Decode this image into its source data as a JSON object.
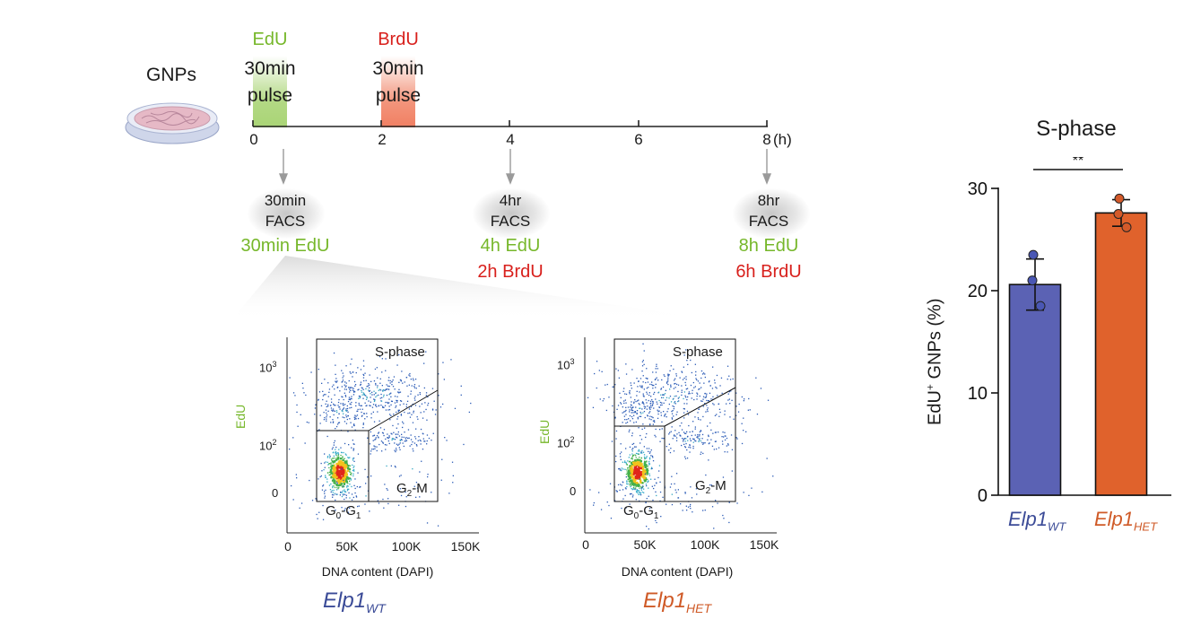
{
  "timeline": {
    "culture_label": "GNPs",
    "edu": {
      "reagent": "EdU",
      "line1": "30min",
      "line2": "pulse"
    },
    "brdu": {
      "reagent": "BrdU",
      "line1": "30min",
      "line2": "pulse"
    },
    "ticks": [
      "0",
      "2",
      "4",
      "6",
      "8"
    ],
    "unit": "(h)",
    "facs_points": [
      {
        "line1": "30min",
        "line2": "FACS",
        "edu_label": "30min EdU",
        "brdu_label": ""
      },
      {
        "line1": "4hr",
        "line2": "FACS",
        "edu_label": "4h EdU",
        "brdu_label": "2h BrdU"
      },
      {
        "line1": "8hr",
        "line2": "FACS",
        "edu_label": "8h EdU",
        "brdu_label": "6h BrdU"
      }
    ]
  },
  "flow_plots": [
    {
      "genotype": "Elp1",
      "genotype_sub": "WT",
      "ylabel": "EdU",
      "xlabel": "DNA content (DAPI)",
      "yticks": [
        {
          "base": "10",
          "exp": "3"
        },
        {
          "base": "10",
          "exp": "2"
        },
        {
          "base": "0",
          "exp": ""
        }
      ],
      "xticks": [
        "0",
        "50K",
        "100K",
        "150K"
      ],
      "gates": {
        "s_phase": "S-phase",
        "g2m": {
          "a": "G",
          "sub": "2",
          "b": "-M"
        },
        "g0g1": {
          "a": "G",
          "sub1": "0",
          "mid": "-G",
          "sub2": "1"
        }
      }
    },
    {
      "genotype": "Elp1",
      "genotype_sub": "HET",
      "ylabel": "EdU",
      "xlabel": "DNA content (DAPI)",
      "yticks": [
        {
          "base": "10",
          "exp": "3"
        },
        {
          "base": "10",
          "exp": "2"
        },
        {
          "base": "0",
          "exp": ""
        }
      ],
      "xticks": [
        "0",
        "50K",
        "100K",
        "150K"
      ],
      "gates": {
        "s_phase": "S-phase",
        "g2m": {
          "a": "G",
          "sub": "2",
          "b": "-M"
        },
        "g0g1": {
          "a": "G",
          "sub1": "0",
          "mid": "-G",
          "sub2": "1"
        }
      }
    }
  ],
  "chart_data": {
    "type": "bar",
    "title": "S-phase",
    "ylabel_main": "EdU",
    "ylabel_sup": "+",
    "ylabel_rest": " GNPs (%)",
    "categories": [
      {
        "name": "Elp1",
        "sub": "WT"
      },
      {
        "name": "Elp1",
        "sub": "HET"
      }
    ],
    "values": [
      20.6,
      27.6
    ],
    "error": [
      2.5,
      1.3
    ],
    "points": [
      [
        23.5,
        21.0,
        18.5
      ],
      [
        29.0,
        27.5,
        26.2
      ]
    ],
    "ylim": [
      0,
      30
    ],
    "yticks": [
      0,
      10,
      20,
      30
    ],
    "colors": [
      "#5b62b4",
      "#e0622c"
    ],
    "point_colors": [
      "#4a57b4",
      "#d45a2a"
    ],
    "significance": "**"
  }
}
